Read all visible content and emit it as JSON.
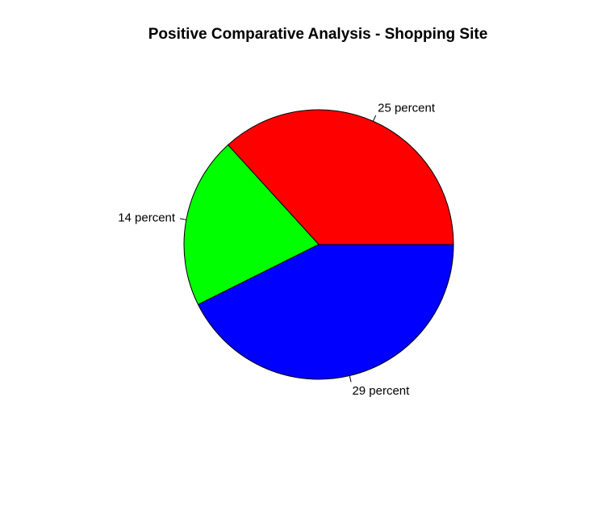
{
  "chart_data": {
    "type": "pie",
    "title": "Positive Comparative Analysis - Shopping Site",
    "slices": [
      {
        "label": "25 percent",
        "value": 25,
        "color": "#ff0000"
      },
      {
        "label": "14 percent",
        "value": 14,
        "color": "#00ff00"
      },
      {
        "label": "29 percent",
        "value": 29,
        "color": "#0000ff"
      }
    ],
    "start_angle_deg": 0,
    "direction": "counterclockwise",
    "slice_border_color": "#000000"
  }
}
